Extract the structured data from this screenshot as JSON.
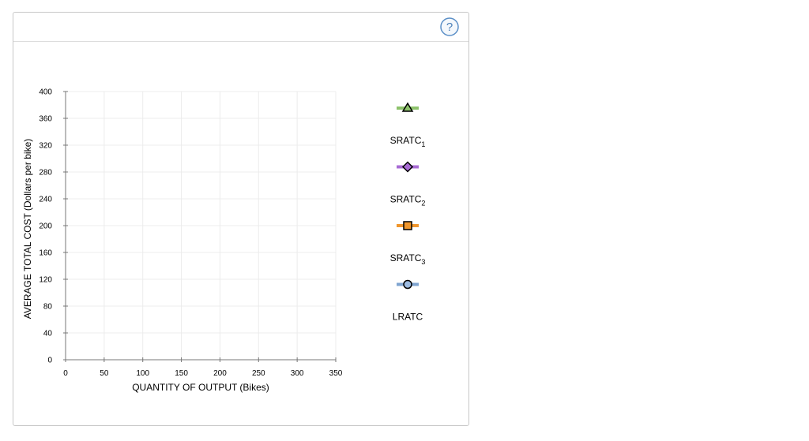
{
  "help": {
    "icon": "question-icon",
    "label": "?"
  },
  "chart_data": {
    "type": "line",
    "title": "",
    "xlabel": "QUANTITY OF OUTPUT (Bikes)",
    "ylabel": "AVERAGE TOTAL COST (Dollars per bike)",
    "xlim": [
      0,
      350
    ],
    "ylim": [
      0,
      400
    ],
    "x_ticks": [
      0,
      50,
      100,
      150,
      200,
      250,
      300,
      350
    ],
    "y_ticks": [
      0,
      40,
      80,
      120,
      160,
      200,
      240,
      280,
      320,
      360,
      400
    ],
    "grid": true,
    "legend_placement": "right",
    "series": [
      {
        "name": "SRATC",
        "subscript": "1",
        "marker": "triangle",
        "color": "#8dc26b",
        "marker_fill": "#8dc26b",
        "points": []
      },
      {
        "name": "SRATC",
        "subscript": "2",
        "marker": "diamond",
        "color": "#a86bd4",
        "marker_fill": "#a86bd4",
        "points": []
      },
      {
        "name": "SRATC",
        "subscript": "3",
        "marker": "square",
        "color": "#f0962c",
        "marker_fill": "#f0962c",
        "points": []
      },
      {
        "name": "LRATC",
        "subscript": "",
        "marker": "circle",
        "color": "#7fa4d0",
        "marker_fill": "#9dbbe0",
        "points": []
      }
    ]
  }
}
